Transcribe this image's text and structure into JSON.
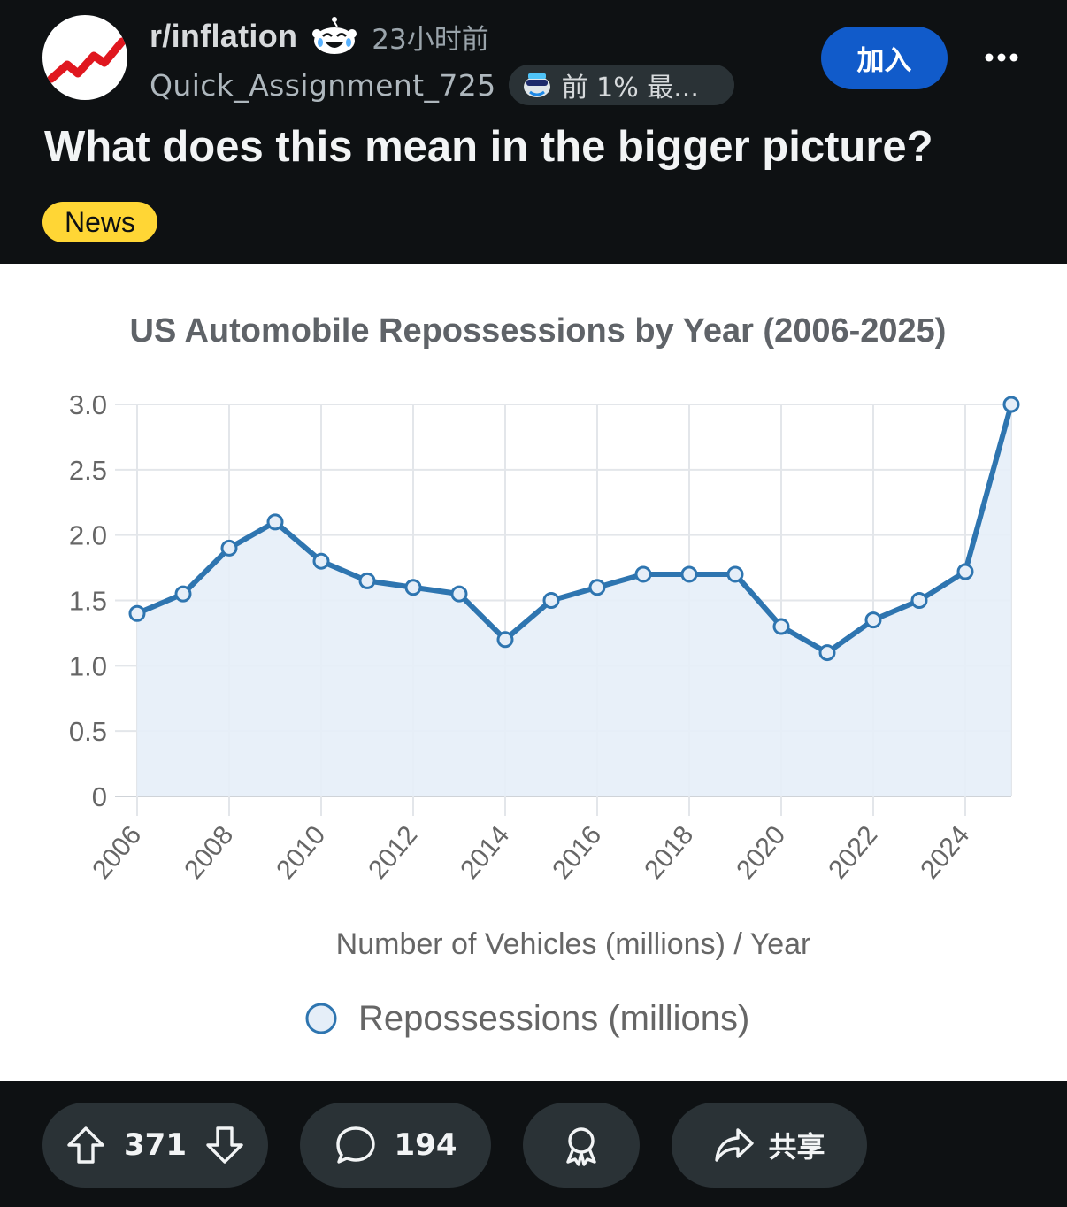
{
  "post": {
    "subreddit": "r/inflation",
    "time": "23小时前",
    "author": "Quick_Assignment_725",
    "flair": "前 1% 最...",
    "join_label": "加入",
    "title": "What does this mean in the bigger picture?",
    "tag": "News"
  },
  "icons": {
    "avatar": "subreddit-avatar-trend-icon",
    "snoo": "snoo-laughing-icon",
    "flair": "top-contributor-icon",
    "more": "more-dots-icon",
    "upvote": "upvote-arrow-icon",
    "downvote": "downvote-arrow-icon",
    "comment": "comment-bubble-icon",
    "award": "award-icon",
    "share": "share-arrow-icon"
  },
  "colors": {
    "background": "#0e1113",
    "join_button": "#115bca",
    "tag": "#ffd635",
    "pill": "#2a3236",
    "series_line": "#2e75b0",
    "series_fill": "#e5eef8"
  },
  "chart_data": {
    "type": "line",
    "title": "US Automobile Repossessions by Year (2006-2025)",
    "xlabel": "Number of Vehicles (millions) / Year",
    "ylabel": "",
    "x": [
      2006,
      2007,
      2008,
      2009,
      2010,
      2011,
      2012,
      2013,
      2014,
      2015,
      2016,
      2017,
      2018,
      2019,
      2020,
      2021,
      2022,
      2023,
      2024,
      2025
    ],
    "series": [
      {
        "name": "Repossessions (millions)",
        "values": [
          1.4,
          1.55,
          1.9,
          2.1,
          1.8,
          1.65,
          1.6,
          1.55,
          1.2,
          1.5,
          1.6,
          1.7,
          1.7,
          1.7,
          1.3,
          1.1,
          1.35,
          1.5,
          1.72,
          3.0
        ]
      }
    ],
    "x_ticks": [
      "2006",
      "2008",
      "2010",
      "2012",
      "2014",
      "2016",
      "2018",
      "2020",
      "2022",
      "2024"
    ],
    "y_ticks": [
      "0",
      "0.5",
      "1.0",
      "1.5",
      "2.0",
      "2.5",
      "3.0"
    ],
    "ylim": [
      0,
      3.0
    ],
    "xlim": [
      2006,
      2025
    ],
    "grid": true,
    "area_fill": true,
    "legend_position": "bottom"
  },
  "footer": {
    "upvotes": "371",
    "comments": "194",
    "share_label": "共享"
  }
}
